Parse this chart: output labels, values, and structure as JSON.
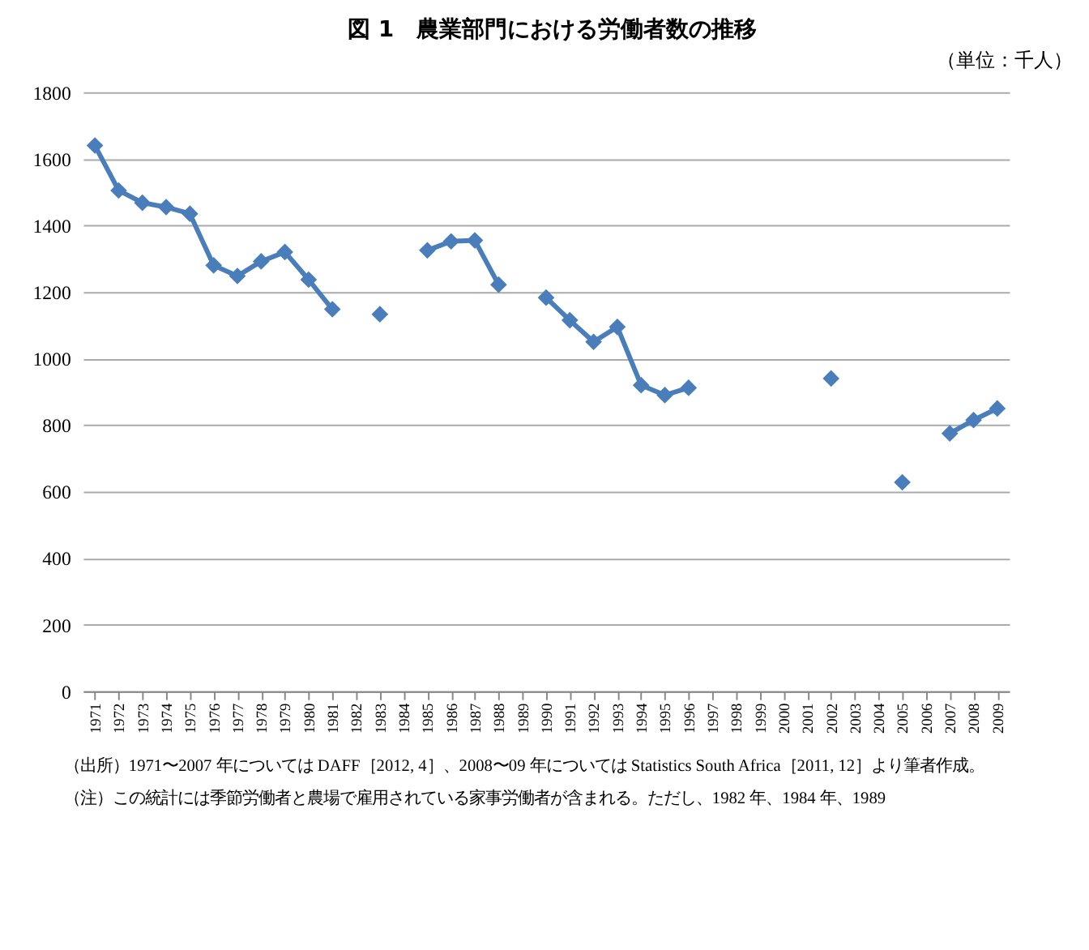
{
  "chart_data": {
    "type": "line",
    "title": "図 1　農業部門における労働者数の推移",
    "categories": [
      "1971",
      "1972",
      "1973",
      "1974",
      "1975",
      "1976",
      "1977",
      "1978",
      "1979",
      "1980",
      "1981",
      "1982",
      "1983",
      "1984",
      "1985",
      "1986",
      "1987",
      "1988",
      "1989",
      "1990",
      "1991",
      "1992",
      "1993",
      "1994",
      "1995",
      "1996",
      "1997",
      "1998",
      "1999",
      "2000",
      "2001",
      "2002",
      "2003",
      "2004",
      "2005",
      "2006",
      "2007",
      "2008",
      "2009"
    ],
    "series": [
      {
        "color": "#4a7ebb",
        "values": [
          1640,
          1505,
          1468,
          1455,
          1435,
          1280,
          1248,
          1292,
          1320,
          1237,
          1148,
          null,
          1133,
          null,
          1325,
          1352,
          1355,
          1222,
          null,
          1183,
          1115,
          1050,
          1095,
          920,
          890,
          912,
          null,
          null,
          null,
          null,
          null,
          940,
          null,
          null,
          628,
          null,
          775,
          815,
          850
        ]
      }
    ],
    "ylim": [
      0,
      1800
    ],
    "yticks": [
      0,
      200,
      400,
      600,
      800,
      1000,
      1200,
      1400,
      1600,
      1800
    ],
    "grid": "y",
    "marker": "diamond",
    "line_style": "solid",
    "annotations": [
      "（単位：千人）",
      "（出所）1971〜2007 年については DAFF［2012, 4］、2008〜09 年については Statistics South Africa［2011, 12］より筆者作成。",
      "（注）この統計には季節労働者と農場で雇用されている家事労働者が含まれる。ただし、1982 年、1984 年、1989"
    ]
  }
}
